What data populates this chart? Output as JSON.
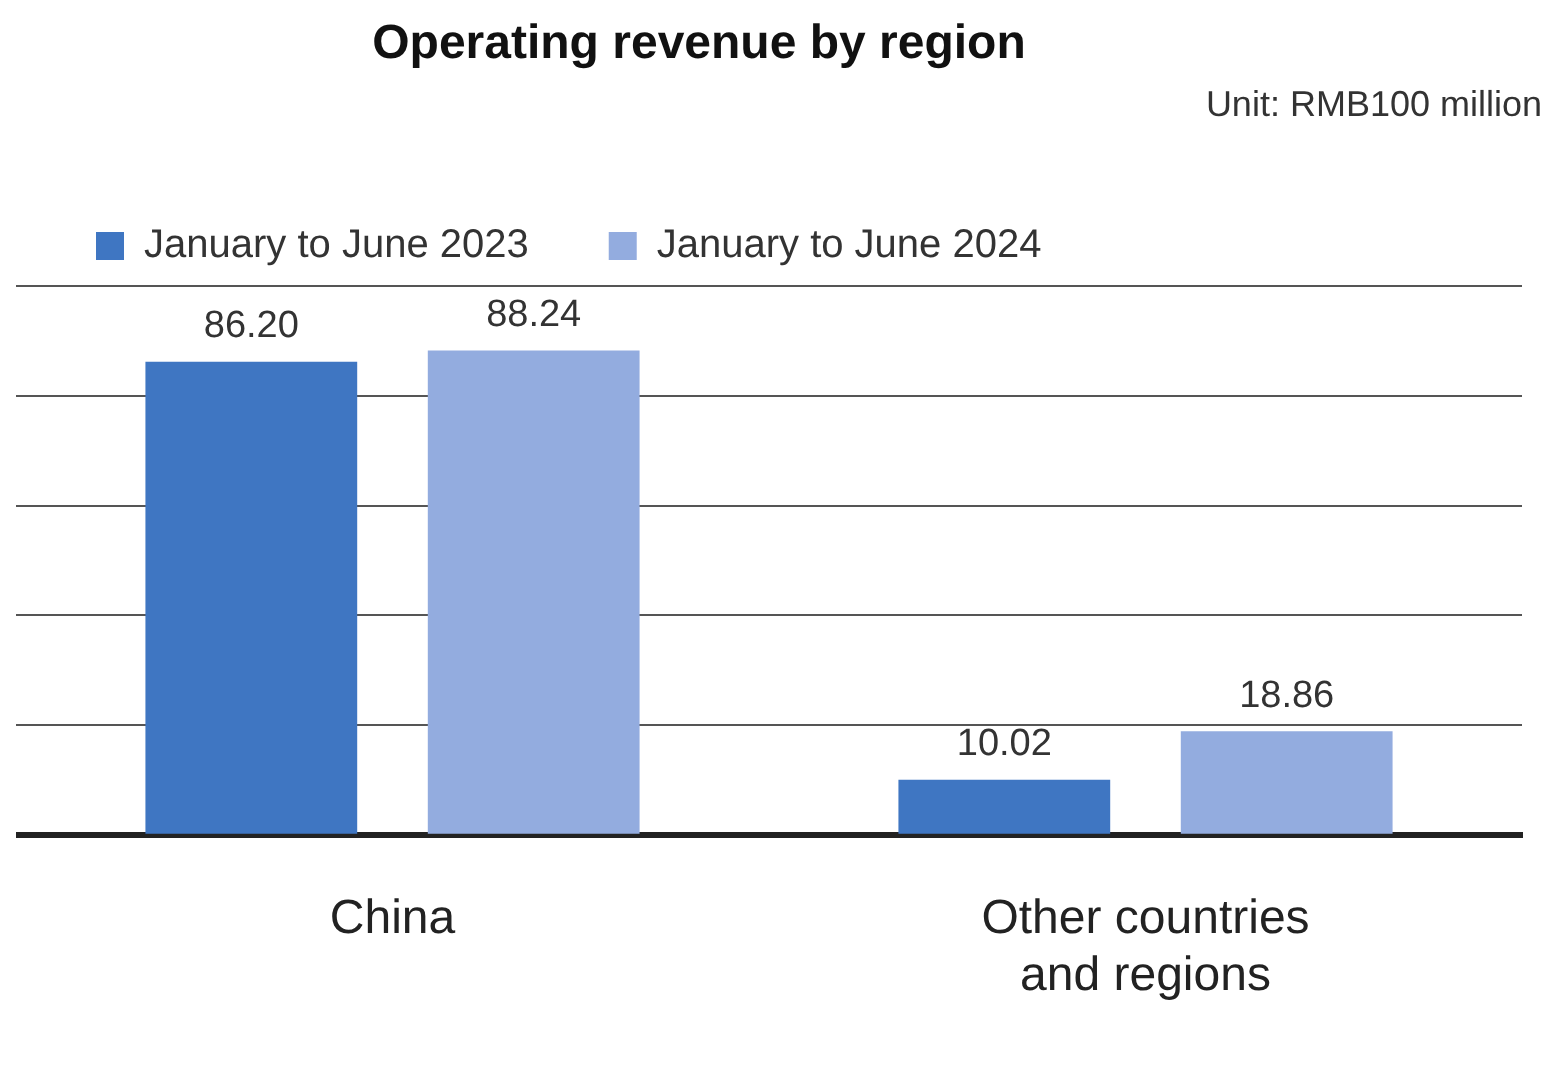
{
  "chart_data": {
    "type": "bar",
    "title": "Operating revenue by region",
    "annotations": [
      "Unit: RMB100 million"
    ],
    "categories": [
      "China",
      "Other countries and regions"
    ],
    "series": [
      {
        "name": "January to June 2023",
        "color": "#3f76c2",
        "values": [
          86.2,
          10.02
        ],
        "value_labels": [
          "86.20",
          "10.02"
        ]
      },
      {
        "name": "January to June 2024",
        "color": "#93acdf",
        "values": [
          88.24,
          18.86
        ],
        "value_labels": [
          "88.24",
          "18.86"
        ]
      }
    ],
    "ylim": [
      0,
      100
    ],
    "yticks": [
      {
        "value": 0,
        "label": null
      },
      {
        "value": 20,
        "label": null
      },
      {
        "value": 40,
        "label": null
      },
      {
        "value": 60,
        "label": null
      },
      {
        "value": 80,
        "label": null
      },
      {
        "value": 100,
        "label": null
      }
    ],
    "tick_labels": "x",
    "grid": "y",
    "legend": "top left"
  }
}
